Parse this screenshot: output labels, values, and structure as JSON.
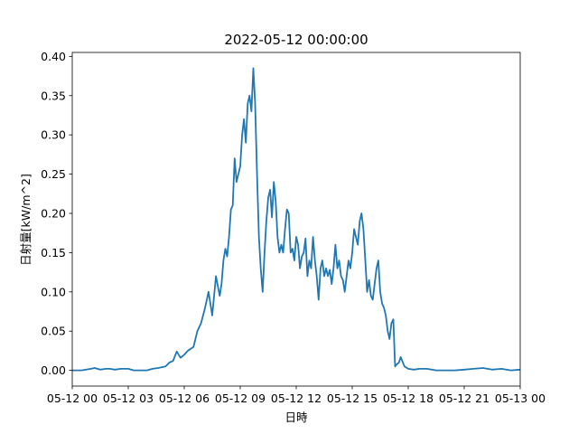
{
  "chart_data": {
    "type": "line",
    "title": "2022-05-12 00:00:00",
    "xlabel": "日時",
    "ylabel": "日射量[kW/m^2]",
    "xlim": [
      0,
      24
    ],
    "ylim": [
      -0.02,
      0.405
    ],
    "x_tick_values": [
      0,
      3,
      6,
      9,
      12,
      15,
      18,
      21,
      24
    ],
    "x_tick_labels": [
      "05-12 00",
      "05-12 03",
      "05-12 06",
      "05-12 09",
      "05-12 12",
      "05-12 15",
      "05-12 18",
      "05-12 21",
      "05-13 00"
    ],
    "y_tick_values": [
      0.0,
      0.05,
      0.1,
      0.15,
      0.2,
      0.25,
      0.3,
      0.35,
      0.4
    ],
    "y_tick_labels": [
      "0.00",
      "0.05",
      "0.10",
      "0.15",
      "0.20",
      "0.25",
      "0.30",
      "0.35",
      "0.40"
    ],
    "grid": false,
    "line_color": "#1f77b4",
    "series": [
      {
        "name": "",
        "x": [
          0,
          0.5,
          1.0,
          1.2,
          1.5,
          1.8,
          2.0,
          2.3,
          2.6,
          3.0,
          3.3,
          3.6,
          4.0,
          4.3,
          4.6,
          5.0,
          5.2,
          5.4,
          5.6,
          5.8,
          6.0,
          6.2,
          6.5,
          6.7,
          6.9,
          7.1,
          7.3,
          7.5,
          7.7,
          7.9,
          8.0,
          8.1,
          8.2,
          8.3,
          8.4,
          8.5,
          8.6,
          8.7,
          8.8,
          8.9,
          9.0,
          9.1,
          9.2,
          9.3,
          9.4,
          9.5,
          9.6,
          9.7,
          9.8,
          9.9,
          10.0,
          10.1,
          10.2,
          10.3,
          10.4,
          10.5,
          10.6,
          10.7,
          10.8,
          10.9,
          11.0,
          11.1,
          11.2,
          11.3,
          11.4,
          11.5,
          11.6,
          11.7,
          11.8,
          11.9,
          12.0,
          12.1,
          12.2,
          12.3,
          12.4,
          12.5,
          12.6,
          12.7,
          12.8,
          12.9,
          13.0,
          13.1,
          13.2,
          13.3,
          13.4,
          13.5,
          13.6,
          13.7,
          13.8,
          13.9,
          14.0,
          14.1,
          14.2,
          14.3,
          14.4,
          14.5,
          14.6,
          14.7,
          14.8,
          14.9,
          15.0,
          15.1,
          15.2,
          15.3,
          15.4,
          15.5,
          15.6,
          15.7,
          15.8,
          15.9,
          16.0,
          16.1,
          16.2,
          16.3,
          16.4,
          16.5,
          16.6,
          16.7,
          16.8,
          16.9,
          17.0,
          17.1,
          17.2,
          17.3,
          17.4,
          17.5,
          17.6,
          17.8,
          18.0,
          18.3,
          18.6,
          19.0,
          19.5,
          20.0,
          20.5,
          21.0,
          21.5,
          22.0,
          22.5,
          23.0,
          23.5,
          24.0
        ],
        "y": [
          0.0,
          0.0,
          0.002,
          0.003,
          0.001,
          0.002,
          0.002,
          0.001,
          0.002,
          0.002,
          0.0,
          0.0,
          0.0,
          0.002,
          0.003,
          0.005,
          0.01,
          0.012,
          0.024,
          0.016,
          0.02,
          0.025,
          0.03,
          0.05,
          0.06,
          0.078,
          0.1,
          0.07,
          0.12,
          0.095,
          0.11,
          0.14,
          0.155,
          0.145,
          0.17,
          0.205,
          0.21,
          0.27,
          0.24,
          0.25,
          0.26,
          0.3,
          0.32,
          0.29,
          0.34,
          0.35,
          0.33,
          0.385,
          0.34,
          0.25,
          0.17,
          0.13,
          0.1,
          0.15,
          0.19,
          0.22,
          0.23,
          0.195,
          0.24,
          0.215,
          0.17,
          0.15,
          0.16,
          0.15,
          0.18,
          0.205,
          0.2,
          0.15,
          0.155,
          0.14,
          0.17,
          0.16,
          0.13,
          0.145,
          0.15,
          0.168,
          0.12,
          0.14,
          0.13,
          0.17,
          0.14,
          0.12,
          0.09,
          0.13,
          0.14,
          0.12,
          0.13,
          0.12,
          0.128,
          0.11,
          0.13,
          0.16,
          0.13,
          0.14,
          0.12,
          0.115,
          0.1,
          0.12,
          0.14,
          0.13,
          0.15,
          0.18,
          0.17,
          0.16,
          0.19,
          0.2,
          0.18,
          0.14,
          0.1,
          0.115,
          0.095,
          0.09,
          0.11,
          0.13,
          0.14,
          0.1,
          0.085,
          0.08,
          0.07,
          0.05,
          0.04,
          0.06,
          0.065,
          0.005,
          0.008,
          0.01,
          0.017,
          0.005,
          0.002,
          0.001,
          0.002,
          0.002,
          0.0,
          0.0,
          0.0,
          0.001,
          0.002,
          0.003,
          0.001,
          0.002,
          0.0,
          0.001
        ]
      }
    ]
  }
}
